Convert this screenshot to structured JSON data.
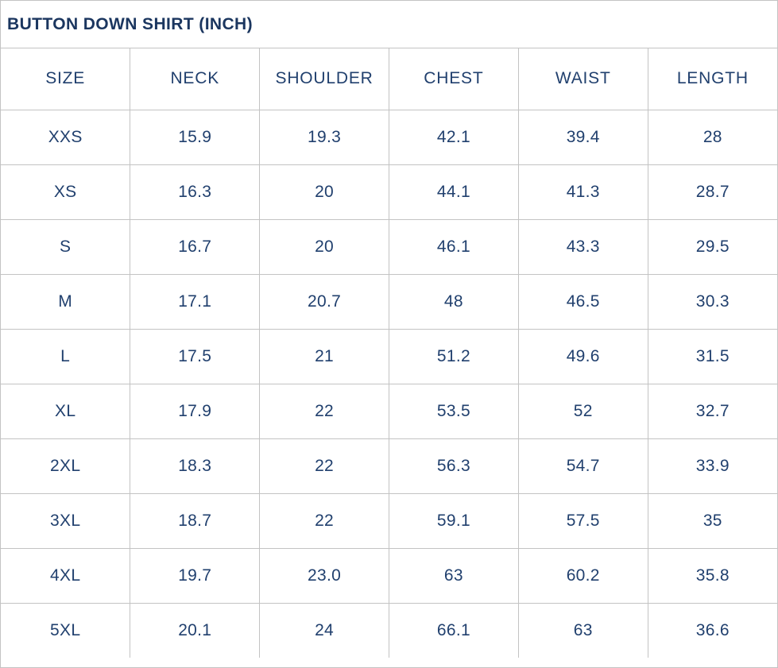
{
  "title": "BUTTON DOWN SHIRT (INCH)",
  "colors": {
    "border": "#c3c3c3",
    "title_text": "#1b365f",
    "cell_text": "#21406e",
    "background": "#ffffff"
  },
  "chart_data": {
    "type": "table",
    "title": "BUTTON DOWN SHIRT (INCH)",
    "columns": [
      "SIZE",
      "NECK",
      "SHOULDER",
      "CHEST",
      "WAIST",
      "LENGTH"
    ],
    "rows": [
      [
        "XXS",
        "15.9",
        "19.3",
        "42.1",
        "39.4",
        "28"
      ],
      [
        "XS",
        "16.3",
        "20",
        "44.1",
        "41.3",
        "28.7"
      ],
      [
        "S",
        "16.7",
        "20",
        "46.1",
        "43.3",
        "29.5"
      ],
      [
        "M",
        "17.1",
        "20.7",
        "48",
        "46.5",
        "30.3"
      ],
      [
        "L",
        "17.5",
        "21",
        "51.2",
        "49.6",
        "31.5"
      ],
      [
        "XL",
        "17.9",
        "22",
        "53.5",
        "52",
        "32.7"
      ],
      [
        "2XL",
        "18.3",
        "22",
        "56.3",
        "54.7",
        "33.9"
      ],
      [
        "3XL",
        "18.7",
        "22",
        "59.1",
        "57.5",
        "35"
      ],
      [
        "4XL",
        "19.7",
        "23.0",
        "63",
        "60.2",
        "35.8"
      ],
      [
        "5XL",
        "20.1",
        "24",
        "66.1",
        "63",
        "36.6"
      ]
    ]
  }
}
